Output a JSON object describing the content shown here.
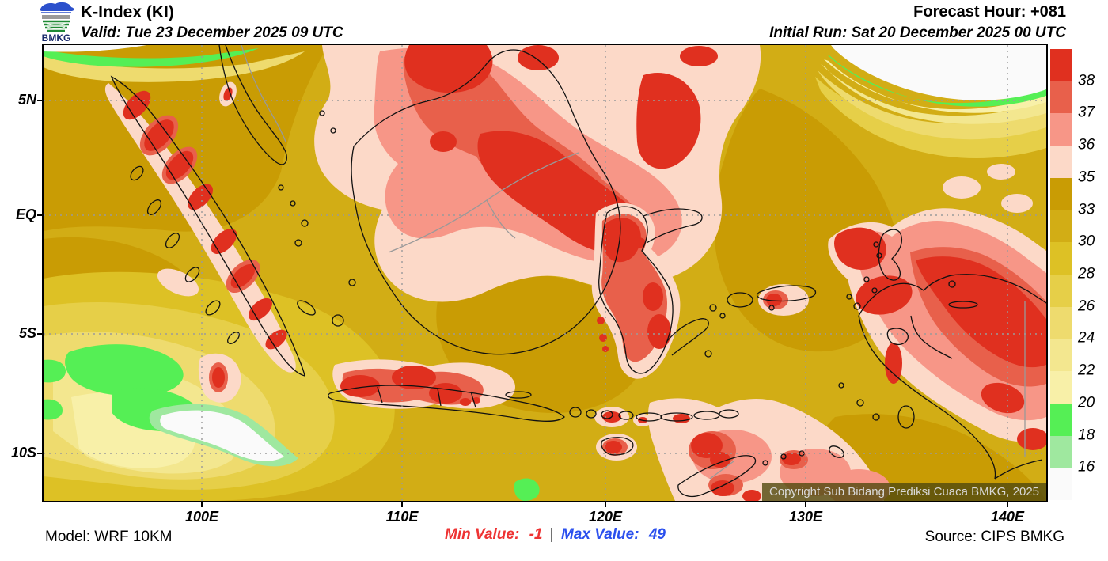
{
  "header": {
    "logo_text": "BMKG",
    "title": "K-Index (KI)",
    "valid": "Valid: Tue 23 December 2025 09 UTC",
    "forecast_hour": "Forecast Hour: +081",
    "initial_run": "Initial Run: Sat 20 December 2025 00 UTC"
  },
  "map": {
    "copyright": "Copyright Sub Bidang Prediksi Cuaca BMKG, 2025",
    "y_axis_labels": [
      "5N",
      "EQ",
      "5S",
      "10S"
    ],
    "x_axis_labels": [
      "100E",
      "110E",
      "120E",
      "130E",
      "140E"
    ]
  },
  "colorbar": {
    "boundary_labels": [
      "38",
      "37",
      "36",
      "35",
      "33",
      "30",
      "28",
      "26",
      "24",
      "22",
      "20",
      "18",
      "16"
    ],
    "segment_palette_keys_top_to_bottom": [
      "red38",
      "red37",
      "salmon36",
      "pink35",
      "gold33",
      "gold30",
      "gold28",
      "gold26",
      "gold24",
      "gold22",
      "gold20",
      "green18",
      "green16",
      "white16"
    ]
  },
  "palette": {
    "red38": "#e0301f",
    "red37": "#e8604b",
    "salmon36": "#f79687",
    "pink35": "#fcd9c8",
    "gold33": "#c99c04",
    "gold30": "#d2ad15",
    "gold28": "#ddc125",
    "gold26": "#e6cf48",
    "gold24": "#eedb6e",
    "gold22": "#f3e78f",
    "gold20": "#f8f0a8",
    "green18": "#55ef55",
    "green16": "#9fe89f",
    "white16": "#fafafa",
    "min_text": "#ee3333",
    "max_text": "#2b50ee"
  },
  "footer": {
    "model": "Model: WRF 10KM",
    "min_label": "Min Value:",
    "min_value": "-1",
    "separator": "|",
    "max_label": "Max Value:",
    "max_value": "49",
    "source": "Source: CIPS BMKG"
  }
}
